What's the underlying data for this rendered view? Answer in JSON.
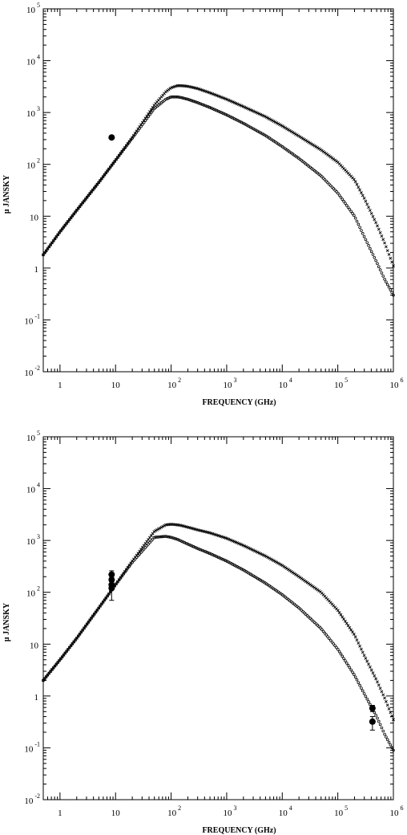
{
  "chart_data": [
    {
      "type": "scatter",
      "panel": "top",
      "xlabel": "FREQUENCY (GHz)",
      "ylabel": "μ JANSKY",
      "x_scale": "log",
      "y_scale": "log",
      "xlim": [
        0.5,
        1000000
      ],
      "ylim": [
        0.01,
        100000
      ],
      "x_ticks": [
        {
          "value": 1,
          "base": "1",
          "exp": ""
        },
        {
          "value": 10,
          "base": "10",
          "exp": ""
        },
        {
          "value": 100,
          "base": "10",
          "exp": "2"
        },
        {
          "value": 1000,
          "base": "10",
          "exp": "3"
        },
        {
          "value": 10000,
          "base": "10",
          "exp": "4"
        },
        {
          "value": 100000,
          "base": "10",
          "exp": "5"
        },
        {
          "value": 1000000,
          "base": "10",
          "exp": "6"
        }
      ],
      "y_ticks": [
        {
          "value": 0.01,
          "base": "10",
          "exp": "-2"
        },
        {
          "value": 0.1,
          "base": "10",
          "exp": "-1"
        },
        {
          "value": 1,
          "base": "1",
          "exp": ""
        },
        {
          "value": 10,
          "base": "10",
          "exp": ""
        },
        {
          "value": 100,
          "base": "10",
          "exp": "2"
        },
        {
          "value": 1000,
          "base": "10",
          "exp": "3"
        },
        {
          "value": 10000,
          "base": "10",
          "exp": "4"
        },
        {
          "value": 100000,
          "base": "10",
          "exp": "5"
        }
      ],
      "series": [
        {
          "marker": "cross",
          "x": [
            0.5,
            1,
            2,
            5,
            10,
            20,
            50,
            80,
            100,
            130,
            150,
            200,
            300,
            500,
            1000,
            2000,
            5000,
            10000,
            20000,
            50000,
            100000,
            200000,
            300000,
            500000,
            700000,
            1000000
          ],
          "y": [
            1.8,
            5,
            13,
            45,
            120,
            330,
            1400,
            2500,
            3000,
            3300,
            3300,
            3200,
            2900,
            2400,
            1800,
            1300,
            830,
            550,
            350,
            190,
            110,
            50,
            22,
            7,
            3,
            1.1
          ]
        },
        {
          "marker": "circle",
          "x": [
            0.5,
            1,
            2,
            5,
            10,
            20,
            50,
            80,
            100,
            130,
            150,
            200,
            300,
            500,
            1000,
            2000,
            5000,
            10000,
            20000,
            50000,
            100000,
            200000,
            300000,
            500000,
            700000,
            1000000
          ],
          "y": [
            1.8,
            5,
            13,
            45,
            120,
            320,
            1200,
            1800,
            2000,
            2000,
            1950,
            1800,
            1550,
            1250,
            900,
            620,
            360,
            220,
            130,
            60,
            28,
            10,
            4,
            1.3,
            0.6,
            0.3
          ]
        }
      ],
      "observations": [
        {
          "x": 8.5,
          "y": 330
        }
      ]
    },
    {
      "type": "scatter",
      "panel": "bottom",
      "xlabel": "FREQUENCY (GHz)",
      "ylabel": "μ JANSKY",
      "x_scale": "log",
      "y_scale": "log",
      "xlim": [
        0.5,
        1000000
      ],
      "ylim": [
        0.01,
        100000
      ],
      "x_ticks": [
        {
          "value": 1,
          "base": "1",
          "exp": ""
        },
        {
          "value": 10,
          "base": "10",
          "exp": ""
        },
        {
          "value": 100,
          "base": "10",
          "exp": "2"
        },
        {
          "value": 1000,
          "base": "10",
          "exp": "3"
        },
        {
          "value": 10000,
          "base": "10",
          "exp": "4"
        },
        {
          "value": 100000,
          "base": "10",
          "exp": "5"
        },
        {
          "value": 1000000,
          "base": "10",
          "exp": "6"
        }
      ],
      "y_ticks": [
        {
          "value": 0.01,
          "base": "10",
          "exp": "-2"
        },
        {
          "value": 0.1,
          "base": "10",
          "exp": "-1"
        },
        {
          "value": 1,
          "base": "1",
          "exp": ""
        },
        {
          "value": 10,
          "base": "10",
          "exp": ""
        },
        {
          "value": 100,
          "base": "10",
          "exp": "2"
        },
        {
          "value": 1000,
          "base": "10",
          "exp": "3"
        },
        {
          "value": 10000,
          "base": "10",
          "exp": "4"
        },
        {
          "value": 100000,
          "base": "10",
          "exp": "5"
        }
      ],
      "series": [
        {
          "marker": "cross",
          "x": [
            0.5,
            1,
            2,
            5,
            10,
            20,
            50,
            80,
            100,
            130,
            150,
            200,
            300,
            500,
            1000,
            2000,
            5000,
            10000,
            20000,
            50000,
            100000,
            200000,
            300000,
            500000,
            700000,
            1000000
          ],
          "y": [
            2,
            5,
            13,
            50,
            140,
            400,
            1500,
            2000,
            2050,
            2000,
            1950,
            1800,
            1600,
            1400,
            1100,
            800,
            500,
            330,
            200,
            100,
            45,
            15,
            6,
            2,
            0.9,
            0.35
          ]
        },
        {
          "marker": "circle",
          "x": [
            0.5,
            1,
            2,
            5,
            10,
            20,
            50,
            80,
            100,
            130,
            150,
            200,
            300,
            500,
            1000,
            2000,
            5000,
            10000,
            20000,
            50000,
            100000,
            200000,
            300000,
            500000,
            700000,
            1000000
          ],
          "y": [
            2,
            5,
            13,
            50,
            140,
            380,
            1150,
            1200,
            1150,
            1050,
            980,
            850,
            700,
            560,
            400,
            270,
            150,
            90,
            50,
            20,
            8,
            2.5,
            1.1,
            0.4,
            0.18,
            0.09
          ]
        }
      ],
      "observations": [
        {
          "x": 8.5,
          "y": 220,
          "err_low": 190,
          "err_high": 260
        },
        {
          "x": 8.5,
          "y": 175,
          "err_low": 150,
          "err_high": 200
        },
        {
          "x": 8.5,
          "y": 140,
          "err_low": 120,
          "err_high": 160
        },
        {
          "x": 8.5,
          "y": 120,
          "err_low": 70,
          "err_high": 150
        },
        {
          "x": 420000,
          "y": 0.58,
          "err_low": 0.5,
          "err_high": 0.66
        },
        {
          "x": 420000,
          "y": 0.32,
          "err_low": 0.22,
          "err_high": 0.4
        }
      ]
    }
  ]
}
